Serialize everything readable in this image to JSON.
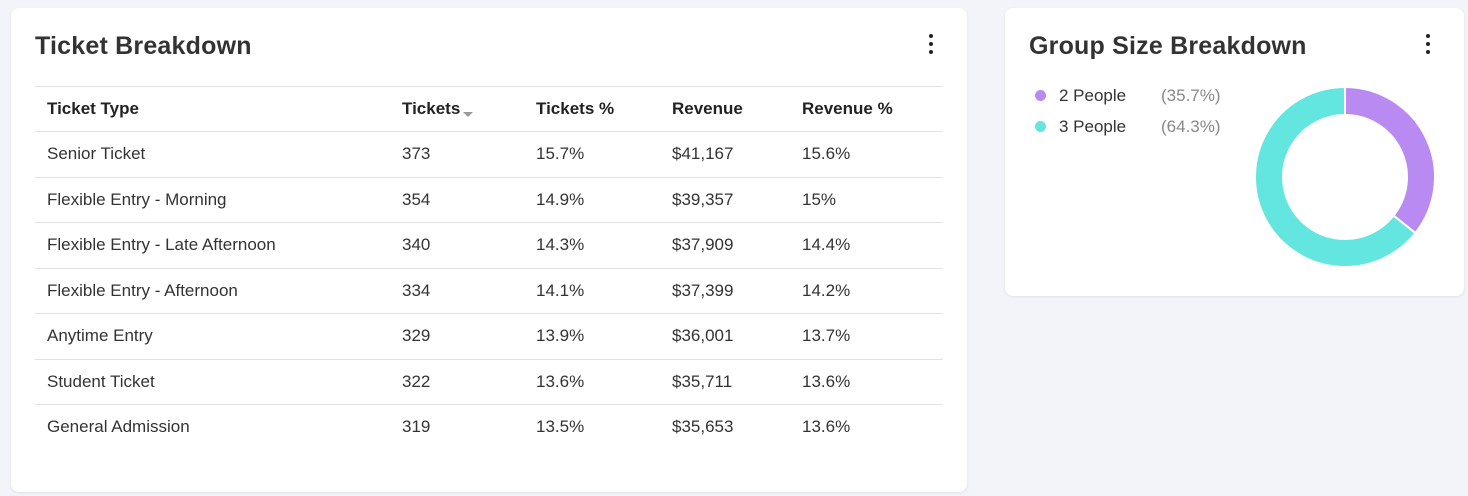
{
  "ticket_breakdown": {
    "title": "Ticket Breakdown",
    "columns": [
      "Ticket Type",
      "Tickets",
      "Tickets %",
      "Revenue",
      "Revenue %"
    ],
    "rows": [
      [
        "Senior Ticket",
        "373",
        "15.7%",
        "$41,167",
        "15.6%"
      ],
      [
        "Flexible Entry - Morning",
        "354",
        "14.9%",
        "$39,357",
        "15%"
      ],
      [
        "Flexible Entry - Late Afternoon",
        "340",
        "14.3%",
        "$37,909",
        "14.4%"
      ],
      [
        "Flexible Entry - Afternoon",
        "334",
        "14.1%",
        "$37,399",
        "14.2%"
      ],
      [
        "Anytime Entry",
        "329",
        "13.9%",
        "$36,001",
        "13.7%"
      ],
      [
        "Student Ticket",
        "322",
        "13.6%",
        "$35,711",
        "13.6%"
      ],
      [
        "General Admission",
        "319",
        "13.5%",
        "$35,653",
        "13.6%"
      ]
    ]
  },
  "group_size": {
    "title": "Group Size Breakdown",
    "legend": [
      {
        "label": "2 People",
        "pct": "(35.7%)",
        "color": "#b98af2"
      },
      {
        "label": "3 People",
        "pct": "(64.3%)",
        "color": "#62e6df"
      }
    ]
  },
  "chart_data": {
    "type": "pie",
    "categories": [
      "2 People",
      "3 People"
    ],
    "values": [
      35.7,
      64.3
    ],
    "colors": [
      "#b98af2",
      "#62e6df"
    ],
    "title": "Group Size Breakdown",
    "legend": "left"
  }
}
